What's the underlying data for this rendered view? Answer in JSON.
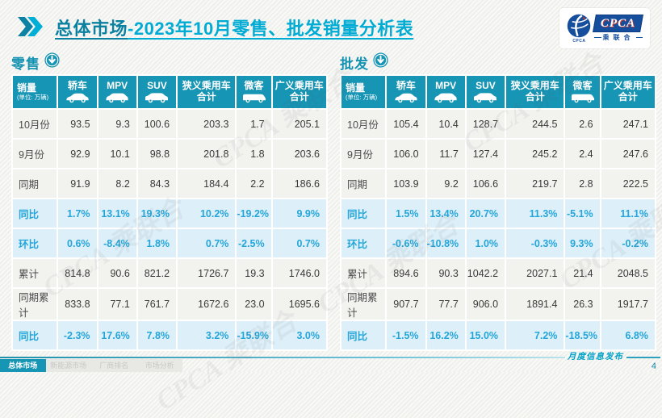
{
  "header": {
    "title_main": "总体市场",
    "title_rest": "-2023年10月零售、批发销量分析表",
    "logo": {
      "emblem_sub": "CPCA",
      "box_text": "CPCA",
      "box_sub": "乘联合"
    }
  },
  "columns": [
    {
      "label": "销量",
      "sub": "(单位: 万辆)"
    },
    {
      "label": "轿车",
      "icon": "car-icon"
    },
    {
      "label": "MPV",
      "icon": "mpv-icon"
    },
    {
      "label": "SUV",
      "icon": "suv-icon"
    },
    {
      "label": "狭义乘用车",
      "label2": "合计"
    },
    {
      "label": "微客",
      "icon": "van-icon"
    },
    {
      "label": "广义乘用车",
      "label2": "合计"
    }
  ],
  "tables": {
    "retail": {
      "label": "零售",
      "rows": [
        {
          "label": "10月份",
          "highlight": false,
          "values": [
            "93.5",
            "9.3",
            "100.6",
            "203.3",
            "1.7",
            "205.1"
          ]
        },
        {
          "label": "9月份",
          "highlight": false,
          "values": [
            "92.9",
            "10.1",
            "98.8",
            "201.8",
            "1.8",
            "203.6"
          ]
        },
        {
          "label": "同期",
          "highlight": false,
          "values": [
            "91.9",
            "8.2",
            "84.3",
            "184.4",
            "2.2",
            "186.6"
          ]
        },
        {
          "label": "同比",
          "highlight": true,
          "values": [
            "1.7%",
            "13.1%",
            "19.3%",
            "10.2%",
            "-19.2%",
            "9.9%"
          ]
        },
        {
          "label": "环比",
          "highlight": true,
          "values": [
            "0.6%",
            "-8.4%",
            "1.8%",
            "0.7%",
            "-2.5%",
            "0.7%"
          ]
        },
        {
          "label": "累计",
          "highlight": false,
          "values": [
            "814.8",
            "90.6",
            "821.2",
            "1726.7",
            "19.3",
            "1746.0"
          ]
        },
        {
          "label": "同期累计",
          "highlight": false,
          "values": [
            "833.8",
            "77.1",
            "761.7",
            "1672.6",
            "23.0",
            "1695.6"
          ]
        },
        {
          "label": "同比",
          "highlight": true,
          "values": [
            "-2.3%",
            "17.6%",
            "7.8%",
            "3.2%",
            "-15.9%",
            "3.0%"
          ]
        }
      ]
    },
    "wholesale": {
      "label": "批发",
      "rows": [
        {
          "label": "10月份",
          "highlight": false,
          "values": [
            "105.4",
            "10.4",
            "128.7",
            "244.5",
            "2.6",
            "247.1"
          ]
        },
        {
          "label": "9月份",
          "highlight": false,
          "values": [
            "106.0",
            "11.7",
            "127.4",
            "245.2",
            "2.4",
            "247.6"
          ]
        },
        {
          "label": "同期",
          "highlight": false,
          "values": [
            "103.9",
            "9.2",
            "106.6",
            "219.7",
            "2.8",
            "222.5"
          ]
        },
        {
          "label": "同比",
          "highlight": true,
          "values": [
            "1.5%",
            "13.4%",
            "20.7%",
            "11.3%",
            "-5.1%",
            "11.1%"
          ]
        },
        {
          "label": "环比",
          "highlight": true,
          "values": [
            "-0.6%",
            "-10.8%",
            "1.0%",
            "-0.3%",
            "9.3%",
            "-0.2%"
          ]
        },
        {
          "label": "累计",
          "highlight": false,
          "values": [
            "894.6",
            "90.3",
            "1042.2",
            "2027.1",
            "21.4",
            "2048.5"
          ]
        },
        {
          "label": "同期累计",
          "highlight": false,
          "values": [
            "907.7",
            "77.7",
            "906.0",
            "1891.4",
            "26.3",
            "1917.7"
          ]
        },
        {
          "label": "同比",
          "highlight": true,
          "values": [
            "-1.5%",
            "16.2%",
            "15.0%",
            "7.2%",
            "-18.5%",
            "6.8%"
          ]
        }
      ]
    }
  },
  "footer": {
    "tabs": [
      {
        "label": "总体市场",
        "active": true
      },
      {
        "label": "新能源市场",
        "active": false
      },
      {
        "label": "厂商排名",
        "active": false
      },
      {
        "label": "市场分析",
        "active": false
      }
    ],
    "publish_note": "月度信息发布",
    "page_number": "4"
  },
  "watermark_text": "CPCA 乘联合",
  "colors": {
    "accent_teal": "#1795b5",
    "accent_cyan": "#00abd4",
    "highlight_text": "#25a6da",
    "logo_blue": "#164e9e"
  }
}
